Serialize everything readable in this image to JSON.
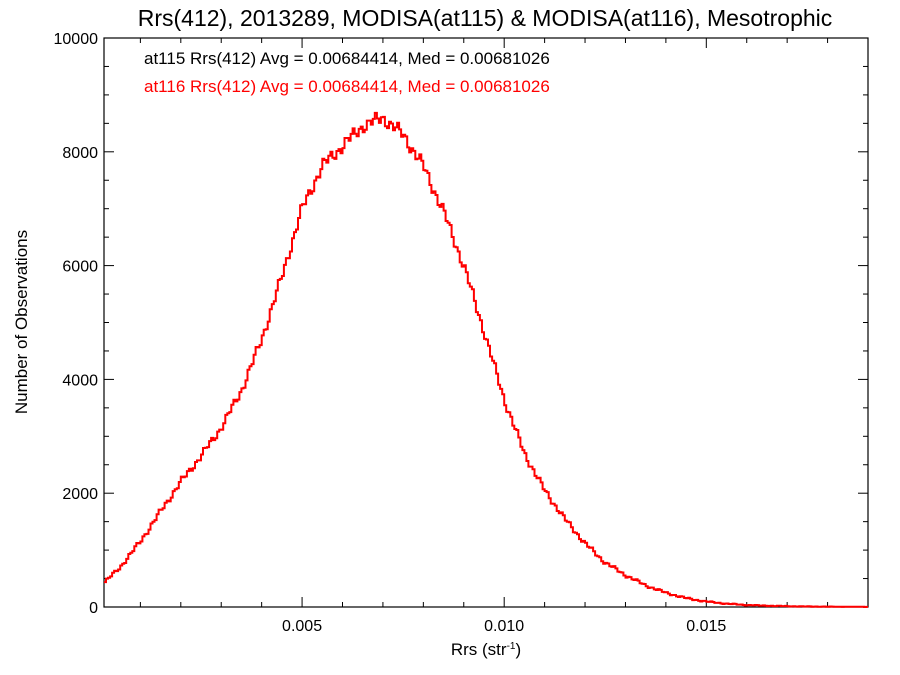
{
  "chart_data": {
    "type": "line",
    "style": "step-histogram",
    "title": "Rrs(412), 2013289, MODISA(at115) & MODISA(at116), Mesotrophic",
    "xlabel_main": "Rrs (str",
    "xlabel_sup": "-1",
    "xlabel_close": ")",
    "ylabel": "Number of Observations",
    "xlim": [
      0.0001,
      0.019
    ],
    "ylim": [
      0,
      10000
    ],
    "x_ticks": [
      0.005,
      0.01,
      0.015
    ],
    "x_tick_labels": [
      "0.005",
      "0.010",
      "0.015"
    ],
    "y_ticks": [
      0,
      2000,
      4000,
      6000,
      8000,
      10000
    ],
    "y_tick_labels": [
      "0",
      "2000",
      "4000",
      "6000",
      "8000",
      "10000"
    ],
    "grid": false,
    "annotations": [
      {
        "text": "at115 Rrs(412) Avg = 0.00684414, Med = 0.00681026",
        "color": "#000000"
      },
      {
        "text": "at116 Rrs(412) Avg = 0.00684414, Med = 0.00681026",
        "color": "#ff0000"
      }
    ],
    "series": [
      {
        "color": "#ff0000",
        "points": [
          [
            0.0001,
            420
          ],
          [
            0.0005,
            700
          ],
          [
            0.001,
            1150
          ],
          [
            0.0015,
            1680
          ],
          [
            0.002,
            2200
          ],
          [
            0.0025,
            2650
          ],
          [
            0.003,
            3150
          ],
          [
            0.0035,
            3800
          ],
          [
            0.004,
            4700
          ],
          [
            0.0045,
            5800
          ],
          [
            0.005,
            7000
          ],
          [
            0.0055,
            7750
          ],
          [
            0.006,
            8100
          ],
          [
            0.0065,
            8450
          ],
          [
            0.007,
            8600
          ],
          [
            0.0075,
            8300
          ],
          [
            0.008,
            7750
          ],
          [
            0.0085,
            6950
          ],
          [
            0.009,
            6000
          ],
          [
            0.0095,
            4850
          ],
          [
            0.01,
            3650
          ],
          [
            0.0105,
            2700
          ],
          [
            0.011,
            2050
          ],
          [
            0.0115,
            1550
          ],
          [
            0.012,
            1120
          ],
          [
            0.0125,
            780
          ],
          [
            0.013,
            560
          ],
          [
            0.0135,
            380
          ],
          [
            0.014,
            250
          ],
          [
            0.0145,
            155
          ],
          [
            0.015,
            95
          ],
          [
            0.0155,
            58
          ],
          [
            0.016,
            35
          ],
          [
            0.0165,
            22
          ],
          [
            0.017,
            14
          ],
          [
            0.0175,
            9
          ],
          [
            0.018,
            6
          ],
          [
            0.0185,
            4
          ],
          [
            0.019,
            3
          ]
        ]
      }
    ]
  }
}
